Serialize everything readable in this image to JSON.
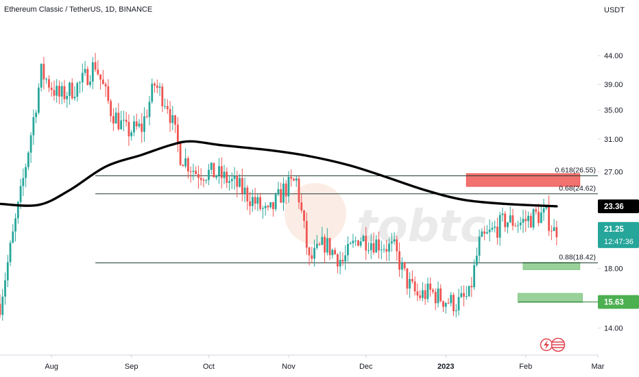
{
  "chart_data": {
    "type": "candlestick",
    "title": "Ethereum Classic / TetherUS, 1D, BINANCE",
    "ylabel": "USDT",
    "ylim": [
      12.5,
      51
    ],
    "y_scale": "log",
    "y_ticks": [
      14.0,
      18.0,
      27.0,
      31.0,
      35.0,
      39.0,
      44.0
    ],
    "y_tick_labels": [
      "14.00",
      "18.00",
      "27.00",
      "31.00",
      "35.00",
      "39.00",
      "44.00"
    ],
    "x_tick_labels": [
      {
        "label": "Aug",
        "date": "2022-08-01"
      },
      {
        "label": "Sep",
        "date": "2022-09-01"
      },
      {
        "label": "Oct",
        "date": "2022-10-01"
      },
      {
        "label": "Nov",
        "date": "2022-11-01"
      },
      {
        "label": "Dec",
        "date": "2022-12-01"
      },
      {
        "label": "2023",
        "date": "2023-01-01"
      },
      {
        "label": "Feb",
        "date": "2023-02-01"
      },
      {
        "label": "Mar",
        "date": "2023-03-01"
      }
    ],
    "x_range": [
      "2022-07-12",
      "2023-03-01"
    ],
    "up_color": "#26a69a",
    "down_color": "#ef5350",
    "candles": [
      {
        "date": "2022-07-12",
        "close": 15.5
      },
      {
        "date": "2022-07-20",
        "close": 24.5
      },
      {
        "date": "2022-07-28",
        "close": 41.0
      },
      {
        "date": "2022-08-04",
        "close": 37.0
      },
      {
        "date": "2022-08-12",
        "close": 39.0
      },
      {
        "date": "2022-08-18",
        "close": 42.5
      },
      {
        "date": "2022-08-24",
        "close": 35.0
      },
      {
        "date": "2022-08-30",
        "close": 32.0
      },
      {
        "date": "2022-09-05",
        "close": 32.5
      },
      {
        "date": "2022-09-10",
        "close": 39.0
      },
      {
        "date": "2022-09-15",
        "close": 36.0
      },
      {
        "date": "2022-09-20",
        "close": 29.0
      },
      {
        "date": "2022-09-26",
        "close": 27.0
      },
      {
        "date": "2022-10-04",
        "close": 26.8
      },
      {
        "date": "2022-10-12",
        "close": 25.5
      },
      {
        "date": "2022-10-18",
        "close": 24.0
      },
      {
        "date": "2022-10-24",
        "close": 22.5
      },
      {
        "date": "2022-10-30",
        "close": 25.0
      },
      {
        "date": "2022-11-04",
        "close": 26.0
      },
      {
        "date": "2022-11-09",
        "close": 18.5
      },
      {
        "date": "2022-11-15",
        "close": 20.0
      },
      {
        "date": "2022-11-22",
        "close": 18.5
      },
      {
        "date": "2022-11-28",
        "close": 20.5
      },
      {
        "date": "2022-12-06",
        "close": 20.0
      },
      {
        "date": "2022-12-12",
        "close": 19.5
      },
      {
        "date": "2022-12-17",
        "close": 17.0
      },
      {
        "date": "2022-12-21",
        "close": 16.0
      },
      {
        "date": "2022-12-26",
        "close": 16.3
      },
      {
        "date": "2022-12-31",
        "close": 15.8
      },
      {
        "date": "2023-01-05",
        "close": 15.5
      },
      {
        "date": "2023-01-10",
        "close": 16.0
      },
      {
        "date": "2023-01-14",
        "close": 20.0
      },
      {
        "date": "2023-01-19",
        "close": 21.0
      },
      {
        "date": "2023-01-24",
        "close": 22.0
      },
      {
        "date": "2023-01-30",
        "close": 21.8
      },
      {
        "date": "2023-02-05",
        "close": 22.5
      },
      {
        "date": "2023-02-09",
        "close": 22.5
      },
      {
        "date": "2023-02-12",
        "close": 21.0
      },
      {
        "date": "2023-02-13",
        "close": 21.25
      }
    ],
    "moving_average": {
      "color": "#000000",
      "points": [
        {
          "date": "2022-07-12",
          "value": 23.6
        },
        {
          "date": "2022-07-27",
          "value": 23.5
        },
        {
          "date": "2022-08-08",
          "value": 25.0
        },
        {
          "date": "2022-08-22",
          "value": 27.6
        },
        {
          "date": "2022-09-05",
          "value": 29.0
        },
        {
          "date": "2022-09-16",
          "value": 30.2
        },
        {
          "date": "2022-09-24",
          "value": 30.7
        },
        {
          "date": "2022-10-06",
          "value": 30.2
        },
        {
          "date": "2022-10-24",
          "value": 29.6
        },
        {
          "date": "2022-11-08",
          "value": 28.9
        },
        {
          "date": "2022-11-24",
          "value": 27.8
        },
        {
          "date": "2022-12-08",
          "value": 26.5
        },
        {
          "date": "2022-12-24",
          "value": 25.0
        },
        {
          "date": "2023-01-08",
          "value": 24.0
        },
        {
          "date": "2023-01-24",
          "value": 23.6
        },
        {
          "date": "2023-02-13",
          "value": 23.36
        }
      ]
    },
    "fib_levels": [
      {
        "label": "0.618(26.55)",
        "value": 26.55,
        "start_date": "2022-08-18"
      },
      {
        "label": "0.68(24.62)",
        "value": 24.62,
        "start_date": "2022-08-18"
      },
      {
        "label": "0.88(18.42)",
        "value": 18.42,
        "start_date": "2022-08-18"
      }
    ],
    "zones": [
      {
        "name": "resistance-zone",
        "color": "#ef5350",
        "from": "2023-01-09",
        "to": "2023-02-22",
        "y_low": 25.4,
        "y_high": 26.8
      },
      {
        "name": "support-zone-1",
        "color": "#81c784",
        "from": "2023-01-31",
        "to": "2023-02-22",
        "y_low": 17.9,
        "y_high": 18.45
      },
      {
        "name": "support-zone-2",
        "color": "#81c784",
        "from": "2023-01-29",
        "to": "2023-02-23",
        "y_low": 15.6,
        "y_high": 16.2
      }
    ],
    "support_line": {
      "value": 15.63,
      "from": "2023-01-29"
    },
    "price_badges": [
      {
        "name": "ma-price-badge",
        "label": "23.36",
        "value": 23.36,
        "bg": "#000000",
        "fg": "#ffffff"
      },
      {
        "name": "current-price-badge",
        "label": "21.25",
        "sublabel": "12:47:36",
        "value": 21.25,
        "bg": "#26a69a",
        "fg": "#ffffff"
      },
      {
        "name": "support-price-badge",
        "label": "15.63",
        "value": 15.63,
        "bg": "#4caf50",
        "fg": "#ffffff"
      }
    ],
    "watermark_text": "tobtc",
    "grid": false,
    "legend": "none"
  }
}
